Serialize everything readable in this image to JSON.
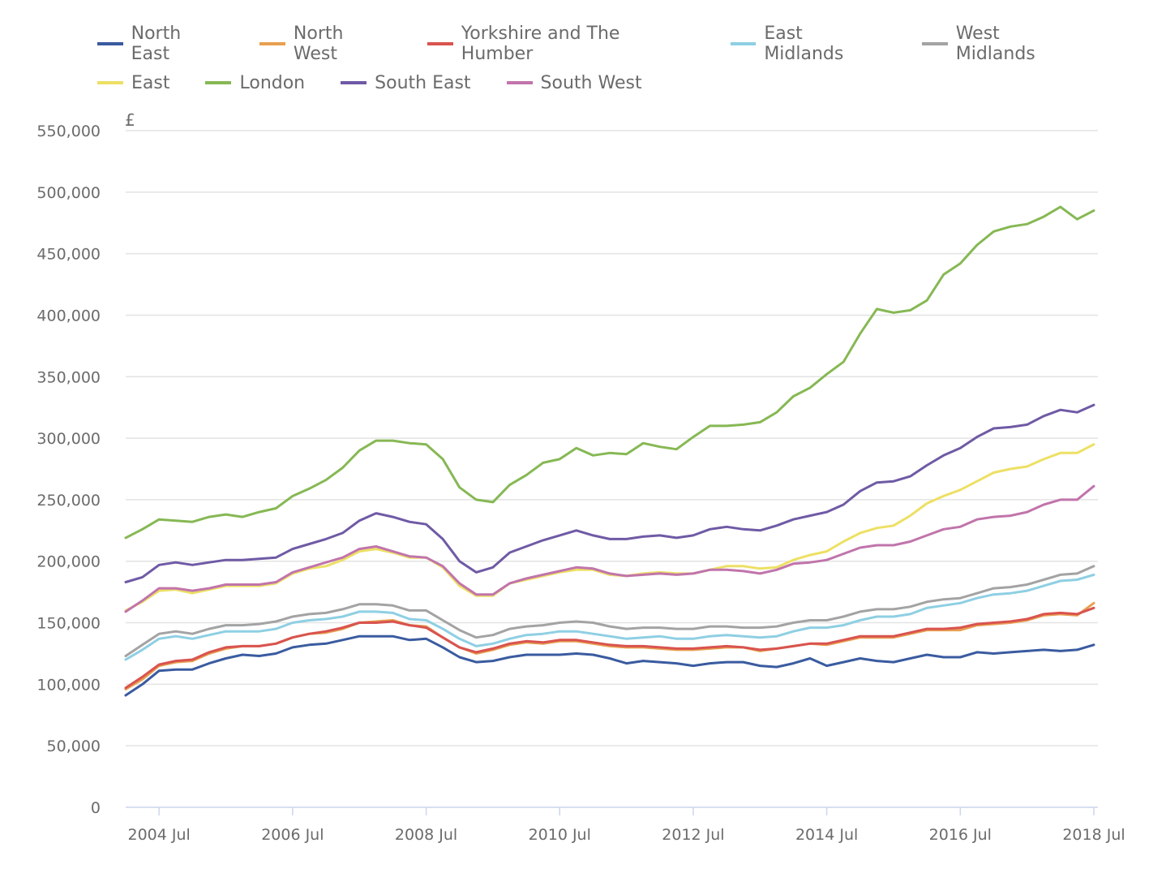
{
  "chart_data": {
    "type": "line",
    "title": "",
    "xlabel": "",
    "ylabel": "£",
    "ylim": [
      0,
      550000
    ],
    "yticks": [
      0,
      50000,
      100000,
      150000,
      200000,
      250000,
      300000,
      350000,
      400000,
      450000,
      500000,
      550000
    ],
    "ytick_labels": [
      "0",
      "50,000",
      "100,000",
      "150,000",
      "200,000",
      "250,000",
      "300,000",
      "350,000",
      "400,000",
      "450,000",
      "500,000",
      "550,000"
    ],
    "xtick_labels": [
      "2004 Jul",
      "2006 Jul",
      "2008 Jul",
      "2010 Jul",
      "2012 Jul",
      "2014 Jul",
      "2016 Jul",
      "2018 Jul"
    ],
    "grid": true,
    "legend_position": "top",
    "x_start": "2004 Jan",
    "x_end": "2018 Jul",
    "x_step": "quarterly",
    "series": [
      {
        "name": "North East",
        "color": "#3a5ba0",
        "values": [
          91000,
          100000,
          111000,
          112000,
          112000,
          117000,
          121000,
          124000,
          123000,
          125000,
          130000,
          132000,
          133000,
          136000,
          139000,
          139000,
          139000,
          136000,
          137000,
          130000,
          122000,
          118000,
          119000,
          122000,
          124000,
          124000,
          124000,
          125000,
          124000,
          121000,
          117000,
          119000,
          118000,
          117000,
          115000,
          117000,
          118000,
          118000,
          115000,
          114000,
          117000,
          121000,
          115000,
          118000,
          121000,
          119000,
          118000,
          121000,
          124000,
          122000,
          122000,
          126000,
          125000,
          126000,
          127000,
          128000,
          127000,
          128000,
          132000
        ]
      },
      {
        "name": "North West",
        "color": "#e8a050",
        "values": [
          96000,
          104000,
          115000,
          118000,
          119000,
          125000,
          129000,
          131000,
          131000,
          133000,
          138000,
          141000,
          142000,
          145000,
          150000,
          151000,
          152000,
          148000,
          147000,
          138000,
          130000,
          125000,
          128000,
          132000,
          134000,
          133000,
          135000,
          135000,
          133000,
          131000,
          130000,
          130000,
          129000,
          128000,
          128000,
          129000,
          130000,
          130000,
          127000,
          129000,
          131000,
          133000,
          132000,
          135000,
          138000,
          138000,
          138000,
          141000,
          144000,
          144000,
          144000,
          148000,
          149000,
          150000,
          152000,
          156000,
          157000,
          156000,
          166000
        ]
      },
      {
        "name": "Yorkshire and The Humber",
        "color": "#d9534f",
        "values": [
          97000,
          106000,
          116000,
          119000,
          120000,
          126000,
          130000,
          131000,
          131000,
          133000,
          138000,
          141000,
          143000,
          146000,
          150000,
          150000,
          151000,
          148000,
          146000,
          138000,
          130000,
          126000,
          129000,
          133000,
          135000,
          134000,
          136000,
          136000,
          134000,
          132000,
          131000,
          131000,
          130000,
          129000,
          129000,
          130000,
          131000,
          130000,
          128000,
          129000,
          131000,
          133000,
          133000,
          136000,
          139000,
          139000,
          139000,
          142000,
          145000,
          145000,
          146000,
          149000,
          150000,
          151000,
          153000,
          157000,
          158000,
          157000,
          162000
        ]
      },
      {
        "name": "East Midlands",
        "color": "#8ecfe3",
        "values": [
          120000,
          128000,
          137000,
          139000,
          137000,
          140000,
          143000,
          143000,
          143000,
          145000,
          150000,
          152000,
          153000,
          155000,
          159000,
          159000,
          158000,
          153000,
          152000,
          145000,
          137000,
          131000,
          133000,
          137000,
          140000,
          141000,
          143000,
          143000,
          141000,
          139000,
          137000,
          138000,
          139000,
          137000,
          137000,
          139000,
          140000,
          139000,
          138000,
          139000,
          143000,
          146000,
          146000,
          148000,
          152000,
          155000,
          155000,
          157000,
          162000,
          164000,
          166000,
          170000,
          173000,
          174000,
          176000,
          180000,
          184000,
          185000,
          189000
        ]
      },
      {
        "name": "West Midlands",
        "color": "#a3a3a3",
        "values": [
          123000,
          132000,
          141000,
          143000,
          141000,
          145000,
          148000,
          148000,
          149000,
          151000,
          155000,
          157000,
          158000,
          161000,
          165000,
          165000,
          164000,
          160000,
          160000,
          152000,
          144000,
          138000,
          140000,
          145000,
          147000,
          148000,
          150000,
          151000,
          150000,
          147000,
          145000,
          146000,
          146000,
          145000,
          145000,
          147000,
          147000,
          146000,
          146000,
          147000,
          150000,
          152000,
          152000,
          155000,
          159000,
          161000,
          161000,
          163000,
          167000,
          169000,
          170000,
          174000,
          178000,
          179000,
          181000,
          185000,
          189000,
          190000,
          196000
        ]
      },
      {
        "name": "East",
        "color": "#ede064",
        "values": [
          160000,
          167000,
          176000,
          177000,
          174000,
          177000,
          180000,
          180000,
          180000,
          182000,
          190000,
          194000,
          196000,
          201000,
          208000,
          210000,
          207000,
          203000,
          203000,
          195000,
          180000,
          172000,
          172000,
          182000,
          185000,
          188000,
          191000,
          193000,
          193000,
          189000,
          188000,
          190000,
          191000,
          190000,
          190000,
          193000,
          196000,
          196000,
          194000,
          195000,
          201000,
          205000,
          208000,
          216000,
          223000,
          227000,
          229000,
          237000,
          247000,
          253000,
          258000,
          265000,
          272000,
          275000,
          277000,
          283000,
          288000,
          288000,
          295000
        ]
      },
      {
        "name": "London",
        "color": "#86b854",
        "values": [
          219000,
          226000,
          234000,
          233000,
          232000,
          236000,
          238000,
          236000,
          240000,
          243000,
          253000,
          259000,
          266000,
          276000,
          290000,
          298000,
          298000,
          296000,
          295000,
          283000,
          260000,
          250000,
          248000,
          262000,
          270000,
          280000,
          283000,
          292000,
          286000,
          288000,
          287000,
          296000,
          293000,
          291000,
          301000,
          310000,
          310000,
          311000,
          313000,
          321000,
          334000,
          341000,
          352000,
          362000,
          385000,
          405000,
          402000,
          404000,
          412000,
          433000,
          442000,
          457000,
          468000,
          472000,
          474000,
          480000,
          488000,
          478000,
          485000
        ]
      },
      {
        "name": "South East",
        "color": "#6f5aa5",
        "values": [
          183000,
          187000,
          197000,
          199000,
          197000,
          199000,
          201000,
          201000,
          202000,
          203000,
          210000,
          214000,
          218000,
          223000,
          233000,
          239000,
          236000,
          232000,
          230000,
          218000,
          200000,
          191000,
          195000,
          207000,
          212000,
          217000,
          221000,
          225000,
          221000,
          218000,
          218000,
          220000,
          221000,
          219000,
          221000,
          226000,
          228000,
          226000,
          225000,
          229000,
          234000,
          237000,
          240000,
          246000,
          257000,
          264000,
          265000,
          269000,
          278000,
          286000,
          292000,
          301000,
          308000,
          309000,
          311000,
          318000,
          323000,
          321000,
          327000
        ]
      },
      {
        "name": "South West",
        "color": "#c174ab",
        "values": [
          159000,
          168000,
          178000,
          178000,
          176000,
          178000,
          181000,
          181000,
          181000,
          183000,
          191000,
          195000,
          199000,
          203000,
          210000,
          212000,
          208000,
          204000,
          203000,
          196000,
          182000,
          173000,
          173000,
          182000,
          186000,
          189000,
          192000,
          195000,
          194000,
          190000,
          188000,
          189000,
          190000,
          189000,
          190000,
          193000,
          193000,
          192000,
          190000,
          193000,
          198000,
          199000,
          201000,
          206000,
          211000,
          213000,
          213000,
          216000,
          221000,
          226000,
          228000,
          234000,
          236000,
          237000,
          240000,
          246000,
          250000,
          250000,
          261000
        ]
      }
    ]
  }
}
